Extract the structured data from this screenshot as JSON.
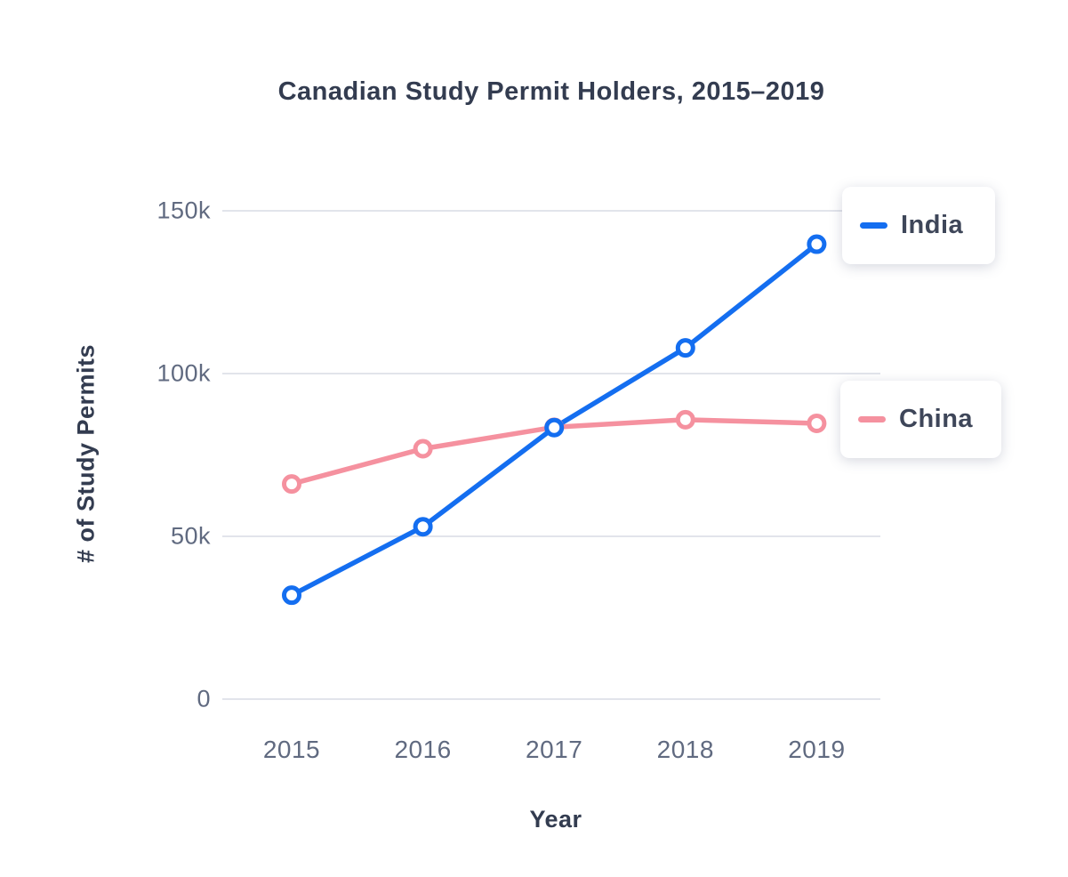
{
  "chart_data": {
    "type": "line",
    "title": "Canadian Study Permit Holders, 2015–2019",
    "xlabel": "Year",
    "ylabel": "# of Study Permits",
    "x": [
      "2015",
      "2016",
      "2017",
      "2018",
      "2019"
    ],
    "series": [
      {
        "name": "India",
        "color": "#146EF0",
        "values": [
          31920,
          52950,
          83410,
          107885,
          139740
        ]
      },
      {
        "name": "China",
        "color": "#F5919F",
        "values": [
          66095,
          76910,
          83515,
          85835,
          84710
        ]
      }
    ],
    "yticks": [
      {
        "value": 0,
        "label": "0"
      },
      {
        "value": 50000,
        "label": "50k"
      },
      {
        "value": 100000,
        "label": "100k"
      },
      {
        "value": 150000,
        "label": "150k"
      }
    ],
    "ylim": [
      0,
      160000
    ],
    "grid": true,
    "legend_position": "right",
    "marker_style": "open-circle",
    "colors": {
      "grid": "#E2E4EB",
      "title_text": "#333C50",
      "tick_text": "#606A80",
      "axis_label_text": "#333C50",
      "legend_text": "#3E4659",
      "background": "#FFFFFF"
    }
  }
}
